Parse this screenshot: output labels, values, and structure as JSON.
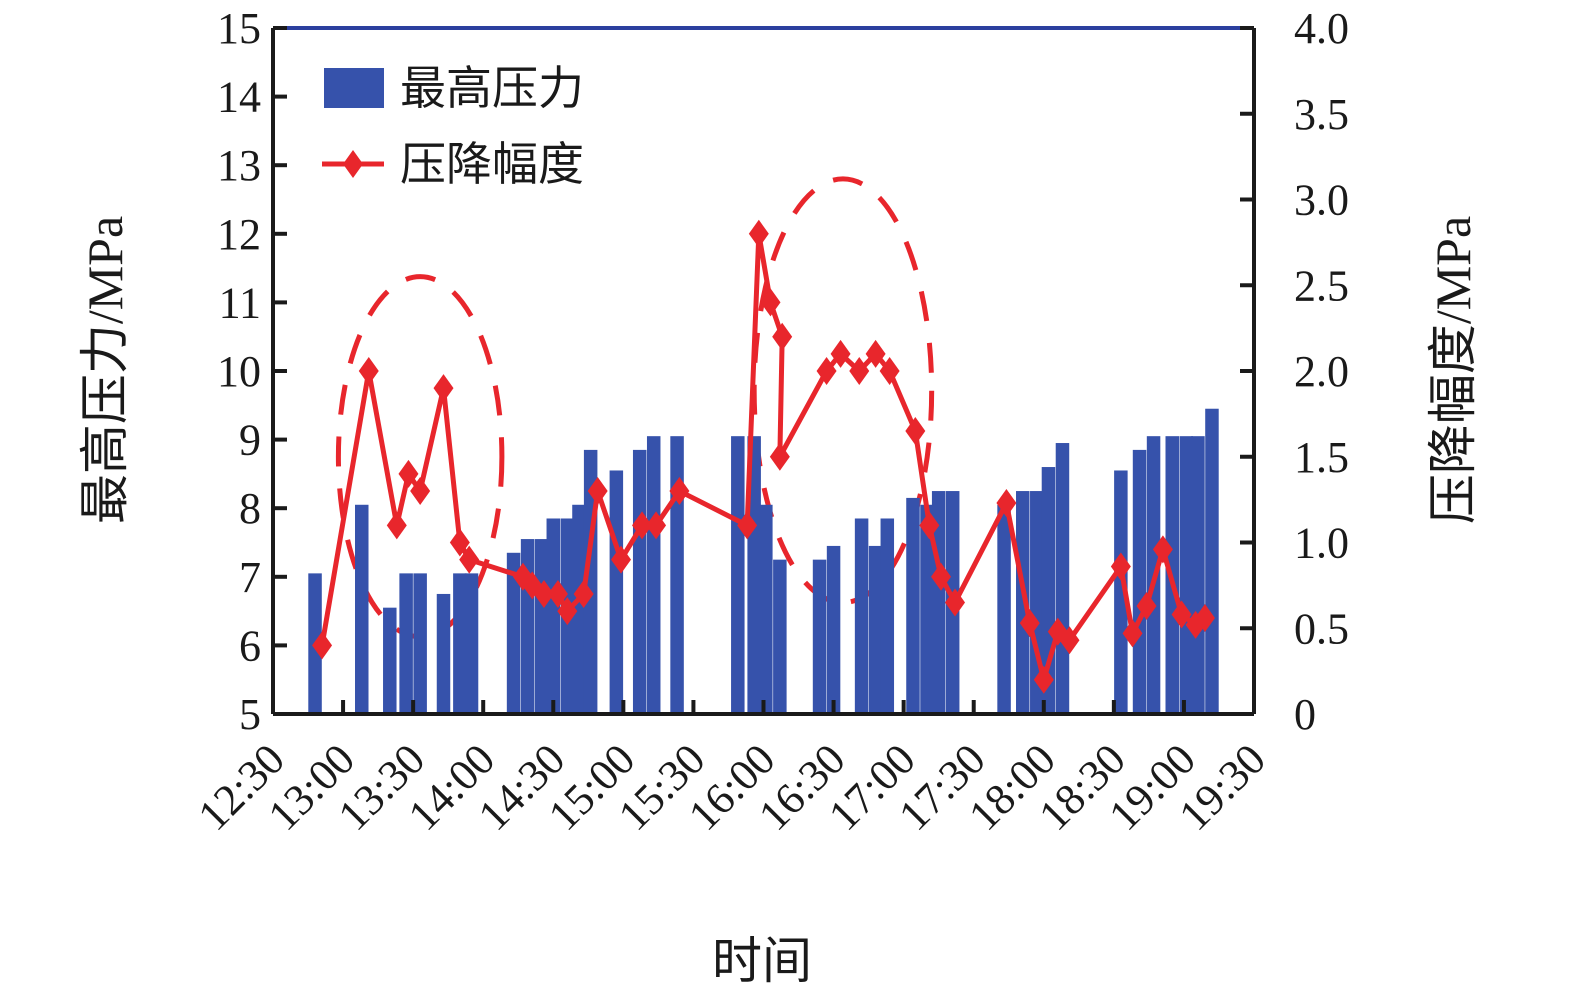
{
  "chart_data": {
    "type": "bar+line",
    "xlabel": "时间",
    "ylabel_left": "最高压力/MPa",
    "ylabel_right": "压降幅度/MPa",
    "x_ticks": [
      "12:30",
      "13:00",
      "13:30",
      "14:00",
      "14:30",
      "15:00",
      "15:30",
      "16:00",
      "16:30",
      "17:00",
      "17:30",
      "18:00",
      "18:30",
      "19:00",
      "19:30"
    ],
    "x_range": [
      "12:30",
      "19:30"
    ],
    "left_axis": {
      "ylim": [
        5,
        15
      ],
      "ticks": [
        5,
        6,
        7,
        8,
        9,
        10,
        11,
        12,
        13,
        14,
        15
      ]
    },
    "right_axis": {
      "ylim": [
        0,
        4.0
      ],
      "ticks": [
        "0",
        "0.5",
        "1.0",
        "1.5",
        "2.0",
        "2.5",
        "3.0",
        "3.5",
        "4.0"
      ]
    },
    "legend": [
      {
        "label": "最高压力",
        "kind": "bar"
      },
      {
        "label": "压降幅度",
        "kind": "line"
      }
    ],
    "colors": {
      "bar": "#3652ab",
      "line": "#e8262c",
      "top_axis": "#2b3f9e"
    },
    "series": [
      {
        "name": "最高压力",
        "kind": "bar",
        "axis": "left",
        "points": [
          {
            "x": "12:48",
            "y": 7.05
          },
          {
            "x": "13:08",
            "y": 8.05
          },
          {
            "x": "13:20",
            "y": 6.55
          },
          {
            "x": "13:27",
            "y": 7.05
          },
          {
            "x": "13:33",
            "y": 7.05
          },
          {
            "x": "13:43",
            "y": 6.75
          },
          {
            "x": "13:50",
            "y": 7.05
          },
          {
            "x": "13:55",
            "y": 7.05
          },
          {
            "x": "14:13",
            "y": 7.35
          },
          {
            "x": "14:19",
            "y": 7.55
          },
          {
            "x": "14:25",
            "y": 7.55
          },
          {
            "x": "14:30",
            "y": 7.85
          },
          {
            "x": "14:36",
            "y": 7.85
          },
          {
            "x": "14:41",
            "y": 8.05
          },
          {
            "x": "14:46",
            "y": 8.85
          },
          {
            "x": "14:57",
            "y": 8.55
          },
          {
            "x": "15:07",
            "y": 8.85
          },
          {
            "x": "15:13",
            "y": 9.05
          },
          {
            "x": "15:23",
            "y": 9.05
          },
          {
            "x": "15:49",
            "y": 9.05
          },
          {
            "x": "15:56",
            "y": 9.05
          },
          {
            "x": "16:01",
            "y": 8.05
          },
          {
            "x": "16:07",
            "y": 7.25
          },
          {
            "x": "16:24",
            "y": 7.25
          },
          {
            "x": "16:30",
            "y": 7.45
          },
          {
            "x": "16:42",
            "y": 7.85
          },
          {
            "x": "16:48",
            "y": 7.45
          },
          {
            "x": "16:53",
            "y": 7.85
          },
          {
            "x": "17:04",
            "y": 8.15
          },
          {
            "x": "17:10",
            "y": 8.05
          },
          {
            "x": "17:15",
            "y": 8.25
          },
          {
            "x": "17:21",
            "y": 8.25
          },
          {
            "x": "17:43",
            "y": 8.05
          },
          {
            "x": "17:51",
            "y": 8.25
          },
          {
            "x": "17:57",
            "y": 8.25
          },
          {
            "x": "18:02",
            "y": 8.6
          },
          {
            "x": "18:08",
            "y": 8.95
          },
          {
            "x": "18:33",
            "y": 8.55
          },
          {
            "x": "18:41",
            "y": 8.85
          },
          {
            "x": "18:47",
            "y": 9.05
          },
          {
            "x": "18:55",
            "y": 9.05
          },
          {
            "x": "19:01",
            "y": 9.05
          },
          {
            "x": "19:06",
            "y": 9.05
          },
          {
            "x": "19:12",
            "y": 9.45
          }
        ]
      },
      {
        "name": "压降幅度",
        "kind": "line",
        "axis": "right",
        "points": [
          {
            "x": "12:51",
            "y": 0.4
          },
          {
            "x": "13:11",
            "y": 2.0
          },
          {
            "x": "13:23",
            "y": 1.1
          },
          {
            "x": "13:28",
            "y": 1.4
          },
          {
            "x": "13:33",
            "y": 1.3
          },
          {
            "x": "13:43",
            "y": 1.9
          },
          {
            "x": "13:50",
            "y": 1.0
          },
          {
            "x": "13:54",
            "y": 0.9
          },
          {
            "x": "14:17",
            "y": 0.8
          },
          {
            "x": "14:21",
            "y": 0.75
          },
          {
            "x": "14:26",
            "y": 0.7
          },
          {
            "x": "14:32",
            "y": 0.7
          },
          {
            "x": "14:36",
            "y": 0.6
          },
          {
            "x": "14:43",
            "y": 0.7
          },
          {
            "x": "14:49",
            "y": 1.3
          },
          {
            "x": "14:59",
            "y": 0.9
          },
          {
            "x": "15:08",
            "y": 1.1
          },
          {
            "x": "15:14",
            "y": 1.1
          },
          {
            "x": "15:24",
            "y": 1.3
          },
          {
            "x": "15:53",
            "y": 1.1
          },
          {
            "x": "15:58",
            "y": 2.8
          },
          {
            "x": "16:03",
            "y": 2.4
          },
          {
            "x": "16:08",
            "y": 2.2
          },
          {
            "x": "16:07",
            "y": 1.5
          },
          {
            "x": "16:27",
            "y": 2.0
          },
          {
            "x": "16:33",
            "y": 2.1
          },
          {
            "x": "16:41",
            "y": 2.0
          },
          {
            "x": "16:48",
            "y": 2.1
          },
          {
            "x": "16:54",
            "y": 2.0
          },
          {
            "x": "17:05",
            "y": 1.65
          },
          {
            "x": "17:11",
            "y": 1.1
          },
          {
            "x": "17:16",
            "y": 0.8
          },
          {
            "x": "17:22",
            "y": 0.65
          },
          {
            "x": "17:44",
            "y": 1.23
          },
          {
            "x": "17:54",
            "y": 0.53
          },
          {
            "x": "18:00",
            "y": 0.2
          },
          {
            "x": "18:06",
            "y": 0.48
          },
          {
            "x": "18:11",
            "y": 0.43
          },
          {
            "x": "18:33",
            "y": 0.86
          },
          {
            "x": "18:38",
            "y": 0.47
          },
          {
            "x": "18:44",
            "y": 0.63
          },
          {
            "x": "18:51",
            "y": 0.96
          },
          {
            "x": "18:59",
            "y": 0.58
          },
          {
            "x": "19:05",
            "y": 0.52
          },
          {
            "x": "19:09",
            "y": 0.56
          }
        ]
      }
    ],
    "annotations": [
      {
        "kind": "dashed-ellipse",
        "from": "12:58",
        "to": "14:08",
        "y_low": 0.45,
        "y_high": 2.55
      },
      {
        "kind": "dashed-ellipse",
        "from": "15:56",
        "to": "17:12",
        "y_low": 0.65,
        "y_high": 3.12
      }
    ]
  }
}
